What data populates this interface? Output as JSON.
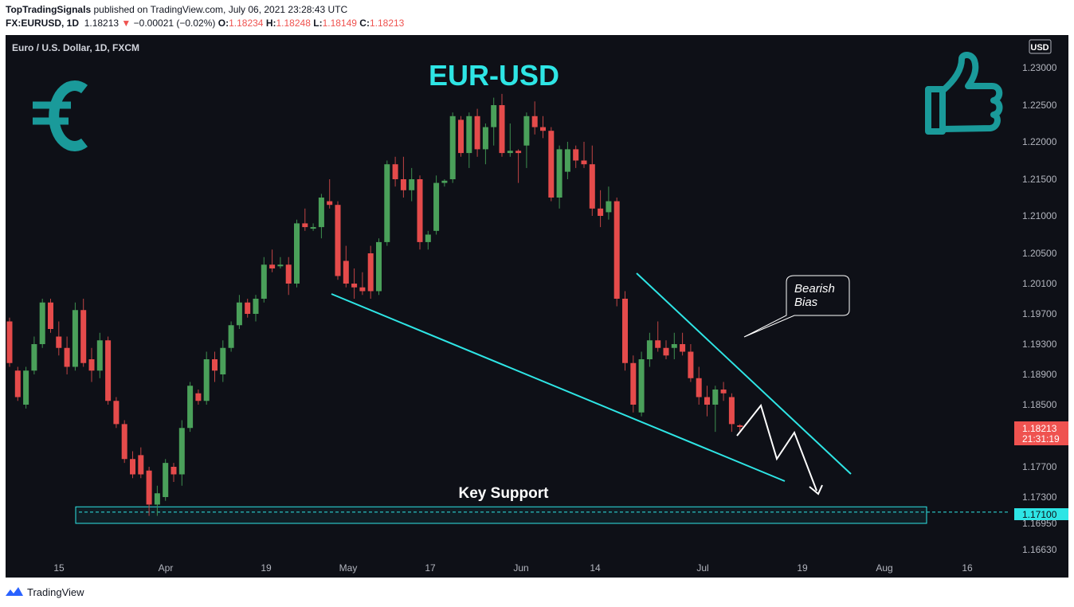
{
  "header": {
    "publisher": "TopTradingSignals",
    "published_text": "published on TradingView.com, July 06, 2021 23:28:43 UTC",
    "symbol": "FX:EURUSD, 1D",
    "last": "1.18213",
    "change_arrow": "▼",
    "change": "−0.00021 (−0.02%)",
    "o_label": "O:",
    "o_value": "1.18234",
    "h_label": "H:",
    "h_value": "1.18248",
    "l_label": "L:",
    "l_value": "1.18149",
    "c_label": "C:",
    "c_value": "1.18213"
  },
  "chart_data": {
    "type": "candlestick",
    "title": "EUR-USD",
    "instrument_label": "Euro / U.S. Dollar, 1D, FXCM",
    "currency_label": "USD",
    "y_ticks": [
      "1.23000",
      "1.22500",
      "1.22000",
      "1.21500",
      "1.21000",
      "1.20500",
      "1.20100",
      "1.19700",
      "1.19300",
      "1.18900",
      "1.18500",
      "1.17700",
      "1.17300",
      "1.16950",
      "1.16630"
    ],
    "y_tick_values": [
      1.23,
      1.225,
      1.22,
      1.215,
      1.21,
      1.205,
      1.201,
      1.197,
      1.193,
      1.189,
      1.185,
      1.177,
      1.173,
      1.1695,
      1.1663
    ],
    "x_ticks": [
      "15",
      "Apr",
      "19",
      "May",
      "17",
      "Jun",
      "14",
      "Jul",
      "19",
      "Aug",
      "16"
    ],
    "last_price_label": "1.18213",
    "countdown_label": "21:31:19",
    "support_price_label": "1.17100",
    "support_level": 1.171,
    "support_zone": [
      1.1695,
      1.1717
    ],
    "support_zone_label": "Key Support",
    "annotation": "Bearish Bias",
    "candles": [
      [
        1.196,
        1.1965,
        1.19,
        1.1905
      ],
      [
        1.1895,
        1.19,
        1.1855,
        1.186
      ],
      [
        1.185,
        1.19,
        1.1845,
        1.1895
      ],
      [
        1.1895,
        1.194,
        1.189,
        1.193
      ],
      [
        1.193,
        1.199,
        1.1925,
        1.1985
      ],
      [
        1.1985,
        1.199,
        1.1945,
        1.195
      ],
      [
        1.194,
        1.196,
        1.1915,
        1.1925
      ],
      [
        1.1925,
        1.194,
        1.189,
        1.19
      ],
      [
        1.19,
        1.1985,
        1.1895,
        1.1975
      ],
      [
        1.1975,
        1.199,
        1.19,
        1.1905
      ],
      [
        1.191,
        1.1925,
        1.188,
        1.1895
      ],
      [
        1.1895,
        1.1945,
        1.1885,
        1.1935
      ],
      [
        1.1935,
        1.194,
        1.185,
        1.1855
      ],
      [
        1.1855,
        1.186,
        1.182,
        1.1825
      ],
      [
        1.1825,
        1.183,
        1.1775,
        1.178
      ],
      [
        1.178,
        1.179,
        1.1755,
        1.176
      ],
      [
        1.1785,
        1.1795,
        1.1755,
        1.176
      ],
      [
        1.1765,
        1.177,
        1.1705,
        1.172
      ],
      [
        1.172,
        1.1745,
        1.1705,
        1.1735
      ],
      [
        1.173,
        1.178,
        1.1725,
        1.1775
      ],
      [
        1.177,
        1.1775,
        1.175,
        1.176
      ],
      [
        1.176,
        1.183,
        1.1745,
        1.182
      ],
      [
        1.182,
        1.188,
        1.1815,
        1.1875
      ],
      [
        1.1865,
        1.187,
        1.185,
        1.1855
      ],
      [
        1.1855,
        1.192,
        1.185,
        1.191
      ],
      [
        1.191,
        1.192,
        1.188,
        1.1895
      ],
      [
        1.189,
        1.1935,
        1.188,
        1.1925
      ],
      [
        1.1925,
        1.196,
        1.192,
        1.1955
      ],
      [
        1.1955,
        1.1995,
        1.195,
        1.1985
      ],
      [
        1.1985,
        1.199,
        1.1965,
        1.197
      ],
      [
        1.197,
        1.1995,
        1.196,
        1.199
      ],
      [
        1.199,
        1.2045,
        1.1985,
        1.2035
      ],
      [
        1.2035,
        1.2055,
        1.2025,
        1.203
      ],
      [
        1.2035,
        1.2045,
        1.203,
        1.2035
      ],
      [
        1.2035,
        1.2045,
        1.1995,
        1.201
      ],
      [
        1.201,
        1.2095,
        1.2005,
        1.209
      ],
      [
        1.209,
        1.211,
        1.208,
        1.2085
      ],
      [
        1.2085,
        1.209,
        1.208,
        1.2085
      ],
      [
        1.2085,
        1.213,
        1.207,
        1.2125
      ],
      [
        1.212,
        1.215,
        1.211,
        1.2115
      ],
      [
        1.2115,
        1.212,
        1.2015,
        1.202
      ],
      [
        1.204,
        1.206,
        1.2005,
        1.201
      ],
      [
        1.201,
        1.203,
        1.199,
        1.2005
      ],
      [
        1.2005,
        1.2025,
        1.1995,
        1.2
      ],
      [
        1.205,
        1.206,
        1.199,
        1.2
      ],
      [
        1.2,
        1.207,
        1.1995,
        1.2065
      ],
      [
        1.2065,
        1.2175,
        1.206,
        1.217
      ],
      [
        1.217,
        1.218,
        1.214,
        1.215
      ],
      [
        1.215,
        1.218,
        1.2125,
        1.2135
      ],
      [
        1.2135,
        1.2165,
        1.212,
        1.215
      ],
      [
        1.215,
        1.2155,
        1.2055,
        1.2065
      ],
      [
        1.2065,
        1.208,
        1.2055,
        1.2075
      ],
      [
        1.208,
        1.2155,
        1.2075,
        1.2145
      ],
      [
        1.2145,
        1.215,
        1.214,
        1.2148
      ],
      [
        1.215,
        1.224,
        1.2145,
        1.2235
      ],
      [
        1.223,
        1.2235,
        1.218,
        1.2185
      ],
      [
        1.2185,
        1.224,
        1.2165,
        1.2235
      ],
      [
        1.2235,
        1.2245,
        1.218,
        1.219
      ],
      [
        1.219,
        1.2225,
        1.217,
        1.222
      ],
      [
        1.222,
        1.226,
        1.2195,
        1.225
      ],
      [
        1.225,
        1.2265,
        1.218,
        1.2185
      ],
      [
        1.2185,
        1.2225,
        1.218,
        1.2188
      ],
      [
        1.2188,
        1.219,
        1.2145,
        1.2185
      ],
      [
        1.2195,
        1.224,
        1.2165,
        1.2235
      ],
      [
        1.2235,
        1.2255,
        1.221,
        1.222
      ],
      [
        1.222,
        1.2235,
        1.2205,
        1.2215
      ],
      [
        1.2215,
        1.222,
        1.212,
        1.2125
      ],
      [
        1.2125,
        1.2195,
        1.211,
        1.219
      ],
      [
        1.216,
        1.22,
        1.215,
        1.219
      ],
      [
        1.219,
        1.2195,
        1.2165,
        1.2175
      ],
      [
        1.2175,
        1.22,
        1.2165,
        1.217
      ],
      [
        1.217,
        1.2195,
        1.21,
        1.211
      ],
      [
        1.211,
        1.2135,
        1.2085,
        1.21
      ],
      [
        1.2105,
        1.214,
        1.2095,
        1.212
      ],
      [
        1.212,
        1.2125,
        1.198,
        1.199
      ],
      [
        1.199,
        1.2,
        1.1895,
        1.1905
      ],
      [
        1.1905,
        1.1915,
        1.184,
        1.185
      ],
      [
        1.184,
        1.192,
        1.1835,
        1.191
      ],
      [
        1.191,
        1.1945,
        1.19,
        1.1935
      ],
      [
        1.1935,
        1.196,
        1.192,
        1.1925
      ],
      [
        1.1925,
        1.1935,
        1.191,
        1.1915
      ],
      [
        1.1925,
        1.1945,
        1.191,
        1.193
      ],
      [
        1.193,
        1.1945,
        1.1915,
        1.192
      ],
      [
        1.192,
        1.193,
        1.188,
        1.1885
      ],
      [
        1.1885,
        1.19,
        1.185,
        1.186
      ],
      [
        1.186,
        1.1875,
        1.1835,
        1.185
      ],
      [
        1.185,
        1.1875,
        1.1815,
        1.187
      ],
      [
        1.187,
        1.188,
        1.1855,
        1.1865
      ],
      [
        1.186,
        1.1865,
        1.1815,
        1.1825
      ],
      [
        1.18234,
        1.18248,
        1.18149,
        1.18213
      ]
    ]
  },
  "footer": {
    "brand": "TradingView"
  },
  "colors": {
    "up": "#26a69a",
    "up_body": "#4aa05a",
    "down": "#ef5350",
    "down_body": "#e54b4b",
    "accent": "#2ee5e5",
    "background": "#0e1017",
    "badge_red": "#ef5350",
    "badge_cyan": "#2ee5e5"
  },
  "icons": [
    "euro-icon",
    "thumbs-up-icon",
    "tradingview-logo-icon"
  ]
}
